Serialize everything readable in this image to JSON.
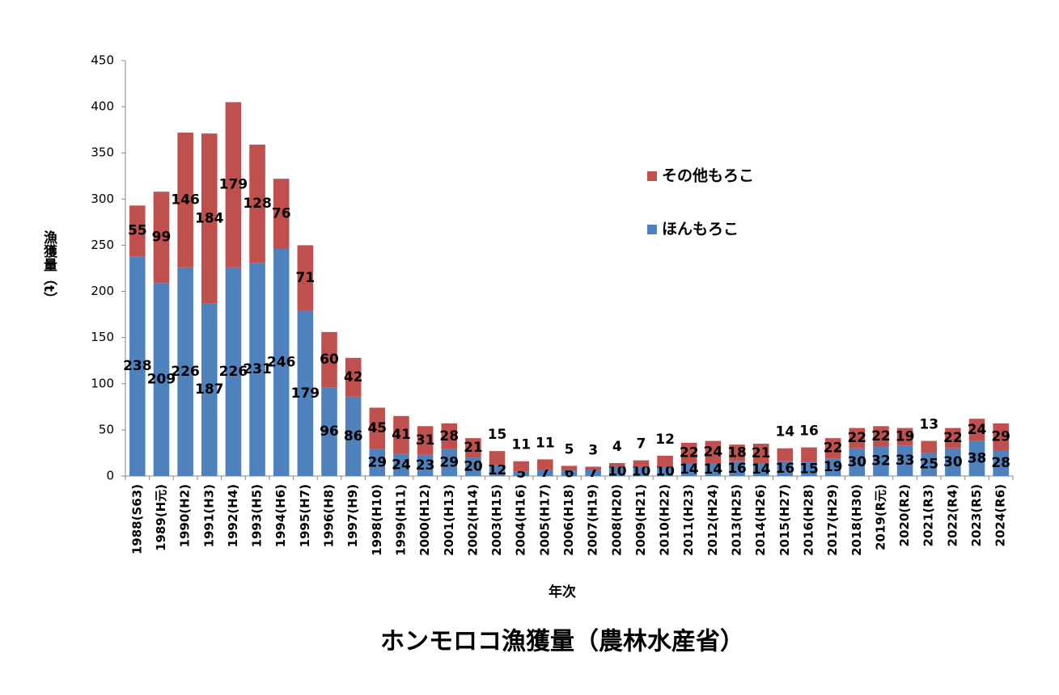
{
  "chart_data": {
    "type": "stacked_bar",
    "title": "ホンモロコ漁獲量（農林水産省）",
    "x_label": "年次",
    "y_label": "漁獲量（t）",
    "categories": [
      "1988(S63)",
      "1989(H元)",
      "1990(H2)",
      "1991(H3)",
      "1992(H4)",
      "1993(H5)",
      "1994(H6)",
      "1995(H7)",
      "1996(H8)",
      "1997(H9)",
      "1998(H10)",
      "1999(H11)",
      "2000(H12)",
      "2001(H13)",
      "2002(H14)",
      "2003(H15)",
      "2004(H16)",
      "2005(H17)",
      "2006(H18)",
      "2007(H19)",
      "2008(H20)",
      "2009(H21)",
      "2010(H22)",
      "2011(H23)",
      "2012(H24)",
      "2013(H25)",
      "2014(H26)",
      "2015(H27)",
      "2016(H28)",
      "2017(H29)",
      "2018(H30)",
      "2019(R元)",
      "2020(R2)",
      "2021(R3)",
      "2022(R4)",
      "2023(R5)",
      "2024(R6)"
    ],
    "series": [
      {
        "name": "ほんもろこ",
        "color": "#4f81bd",
        "values": [
          238,
          209,
          226,
          187,
          226,
          231,
          246,
          179,
          96,
          86,
          29,
          24,
          23,
          29,
          20,
          12,
          5,
          7,
          6,
          7,
          10,
          10,
          10,
          14,
          14,
          16,
          14,
          16,
          15,
          19,
          30,
          32,
          33,
          25,
          30,
          38,
          28
        ]
      },
      {
        "name": "その他もろこ",
        "color": "#c0504d",
        "values": [
          55,
          99,
          146,
          184,
          179,
          128,
          76,
          71,
          60,
          42,
          45,
          41,
          31,
          28,
          21,
          15,
          11,
          11,
          5,
          3,
          4,
          7,
          12,
          22,
          24,
          18,
          21,
          14,
          16,
          22,
          22,
          22,
          19,
          13,
          22,
          24,
          29
        ]
      }
    ],
    "ylim": [
      0,
      450
    ],
    "yticks": [
      0,
      50,
      100,
      150,
      200,
      250,
      300,
      350,
      400,
      450
    ],
    "grid": false,
    "legend": "right"
  }
}
